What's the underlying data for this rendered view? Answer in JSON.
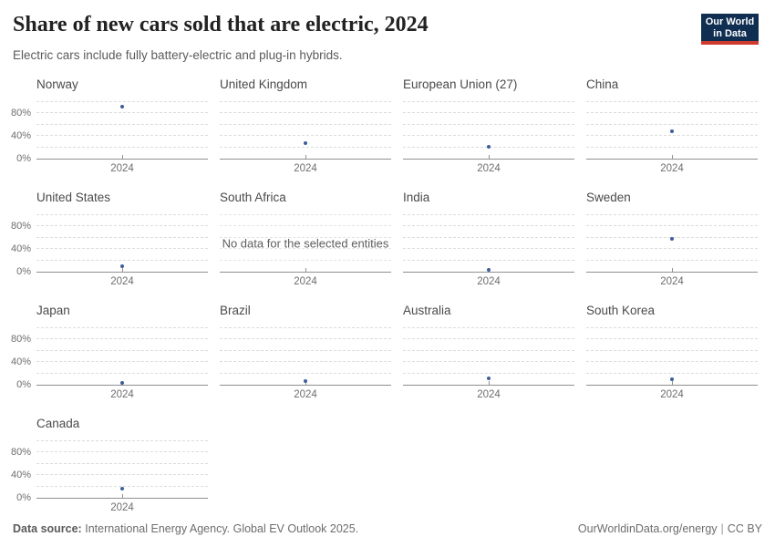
{
  "header": {
    "title": "Share of new cars sold that are electric, 2024",
    "subtitle": "Electric cars include fully battery-electric and plug-in hybrids.",
    "logo": {
      "line1": "Our World",
      "line2": "in Data",
      "bg_color": "#0F2E52",
      "accent_color": "#CF3A2E"
    }
  },
  "chart_data": {
    "type": "scatter",
    "title": "Share of new cars sold that are electric, 2024",
    "unit": "%",
    "x_tick_label": "2024",
    "ylim": [
      0,
      100
    ],
    "ytick_labels_pct": [
      0,
      40,
      80
    ],
    "gridlines_pct": [
      20,
      40,
      60,
      80,
      100
    ],
    "grid_style": "dashed",
    "point_color": "#3D5F9D",
    "no_data_message": "No data for the selected entities",
    "facets": [
      {
        "name": "Norway",
        "value": 92
      },
      {
        "name": "United Kingdom",
        "value": 28
      },
      {
        "name": "European Union (27)",
        "value": 21
      },
      {
        "name": "China",
        "value": 48
      },
      {
        "name": "United States",
        "value": 10
      },
      {
        "name": "South Africa",
        "value": null
      },
      {
        "name": "India",
        "value": 2.5
      },
      {
        "name": "Sweden",
        "value": 58
      },
      {
        "name": "Japan",
        "value": 3
      },
      {
        "name": "Brazil",
        "value": 7
      },
      {
        "name": "Australia",
        "value": 12
      },
      {
        "name": "South Korea",
        "value": 9
      },
      {
        "name": "Canada",
        "value": 16.5
      }
    ]
  },
  "footer": {
    "datasource_label": "Data source:",
    "datasource_text": "International Energy Agency. Global EV Outlook 2025.",
    "link": "OurWorldinData.org/energy",
    "separator": "|",
    "license": "CC BY"
  }
}
